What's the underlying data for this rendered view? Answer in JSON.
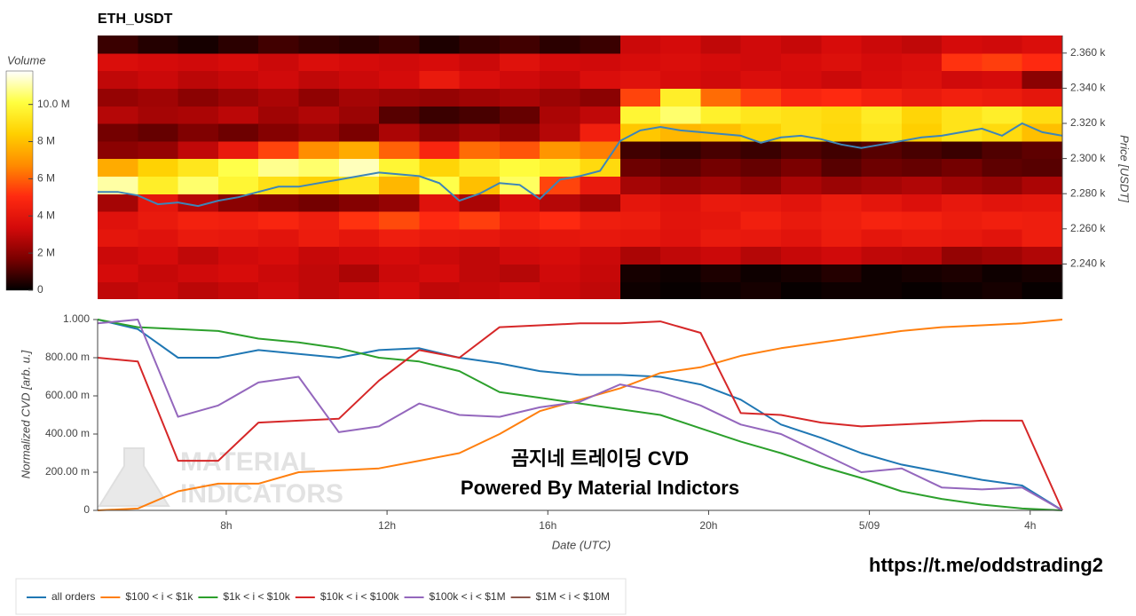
{
  "chart_data": [
    {
      "type": "heatmap",
      "title": "ETH_USDT",
      "ylabel": "Price [USDT]",
      "colorbar_title": "Volume",
      "xlim": [
        4.8,
        28.8
      ],
      "ylim": [
        2220,
        2370
      ],
      "yticks": [
        {
          "value": 2240,
          "label": "2.240 k"
        },
        {
          "value": 2260,
          "label": "2.260 k"
        },
        {
          "value": 2280,
          "label": "2.280 k"
        },
        {
          "value": 2300,
          "label": "2.300 k"
        },
        {
          "value": 2320,
          "label": "2.320 k"
        },
        {
          "value": 2340,
          "label": "2.340 k"
        },
        {
          "value": 2360,
          "label": "2.360 k"
        }
      ],
      "clim": [
        0,
        11800000.0
      ],
      "cticks": [
        0,
        {
          "value": 2000000.0,
          "label": "2 M"
        },
        {
          "value": 4000000.0,
          "label": "4 M"
        },
        {
          "value": 6000000.0,
          "label": "6 M"
        },
        {
          "value": 8000000.0,
          "label": "8 M"
        },
        {
          "value": 10000000.0,
          "label": "10.0 M"
        }
      ],
      "colormap": [
        "#000000",
        "#7a0000",
        "#d40a0a",
        "#ff2a10",
        "#ff8c00",
        "#ffd000",
        "#ffff40",
        "#ffffff"
      ],
      "x_bins": [
        4.8,
        5.8,
        6.8,
        7.8,
        8.8,
        9.8,
        10.8,
        11.8,
        12.8,
        13.8,
        14.8,
        15.8,
        16.8,
        17.8,
        18.8,
        19.8,
        20.8,
        21.8,
        22.8,
        23.8,
        24.8,
        25.8,
        26.8,
        27.8,
        28.8
      ],
      "y_bins": [
        2220,
        2230,
        2240,
        2250,
        2260,
        2270,
        2280,
        2290,
        2300,
        2310,
        2320,
        2330,
        2340,
        2350,
        2360,
        2370
      ],
      "z": [
        [
          3000000.0,
          3200000.0,
          2900000.0,
          3100000.0,
          3300000.0,
          3000000.0,
          3200000.0,
          3400000.0,
          3000000.0,
          3100000.0,
          3300000.0,
          3200000.0,
          3000000.0,
          200000.0,
          100000.0,
          200000.0,
          300000.0,
          100000.0,
          200000.0,
          200000.0,
          100000.0,
          200000.0,
          300000.0,
          100000.0
        ],
        [
          3400000.0,
          3100000.0,
          3300000.0,
          3500000.0,
          3200000.0,
          3000000.0,
          2600000.0,
          3200000.0,
          3400000.0,
          3000000.0,
          2800000.0,
          3300000.0,
          3100000.0,
          300000.0,
          200000.0,
          400000.0,
          200000.0,
          300000.0,
          500000.0,
          200000.0,
          300000.0,
          400000.0,
          200000.0,
          300000.0
        ],
        [
          3200000.0,
          3400000.0,
          3000000.0,
          3300000.0,
          3500000.0,
          3100000.0,
          3300000.0,
          3400000.0,
          3200000.0,
          3000000.0,
          3300000.0,
          3500000.0,
          3200000.0,
          2600000.0,
          3000000.0,
          3200000.0,
          2800000.0,
          3100000.0,
          3300000.0,
          3000000.0,
          2900000.0,
          2200000.0,
          2400000.0,
          2700000.0
        ],
        [
          4000000.0,
          3800000.0,
          4200000.0,
          4100000.0,
          3900000.0,
          4300000.0,
          4000000.0,
          4400000.0,
          4200000.0,
          4100000.0,
          3900000.0,
          4000000.0,
          4100000.0,
          4000000.0,
          3800000.0,
          4200000.0,
          4100000.0,
          3900000.0,
          4300000.0,
          4000000.0,
          4200000.0,
          4100000.0,
          3900000.0,
          4400000.0
        ],
        [
          3800000.0,
          4200000.0,
          4600000.0,
          4500000.0,
          4800000.0,
          4400000.0,
          5200000.0,
          5600000.0,
          5000000.0,
          5400000.0,
          4600000.0,
          5000000.0,
          4400000.0,
          4300000.0,
          3900000.0,
          4000000.0,
          4500000.0,
          4200000.0,
          4400000.0,
          4700000.0,
          4600000.0,
          4300000.0,
          4500000.0,
          4400000.0
        ],
        [
          2500000.0,
          4000000.0,
          2800000.0,
          2000000.0,
          1800000.0,
          1600000.0,
          1900000.0,
          2200000.0,
          3800000.0,
          2600000.0,
          3500000.0,
          2800000.0,
          2400000.0,
          4000000.0,
          3800000.0,
          4200000.0,
          4100000.0,
          3900000.0,
          4300000.0,
          4000000.0,
          3700000.0,
          4100000.0,
          3900000.0,
          4000000.0
        ],
        [
          11000000.0,
          9500000.0,
          10500000.0,
          9800000.0,
          9000000.0,
          8500000.0,
          9200000.0,
          7800000.0,
          10200000.0,
          8000000.0,
          10400000.0,
          5500000.0,
          4200000.0,
          2500000.0,
          2200000.0,
          2400000.0,
          2100000.0,
          2600000.0,
          2300000.0,
          2500000.0,
          2700000.0,
          2400000.0,
          2200000.0,
          2600000.0
        ],
        [
          7500000.0,
          8500000.0,
          9200000.0,
          10200000.0,
          10800000.0,
          10500000.0,
          11200000.0,
          9800000.0,
          8600000.0,
          9400000.0,
          10000000.0,
          9600000.0,
          8800000.0,
          1500000.0,
          1300000.0,
          1600000.0,
          1400000.0,
          1700000.0,
          1200000.0,
          1500000.0,
          1400000.0,
          1600000.0,
          1300000.0,
          1200000.0
        ],
        [
          2000000.0,
          2200000.0,
          3000000.0,
          4200000.0,
          5500000.0,
          6800000.0,
          7500000.0,
          6000000.0,
          4800000.0,
          6200000.0,
          5800000.0,
          7000000.0,
          6500000.0,
          900000.0,
          700000.0,
          1000000.0,
          800000.0,
          1100000.0,
          900000.0,
          1200000.0,
          1000000.0,
          800000.0,
          1100000.0,
          1300000.0
        ],
        [
          1600000.0,
          1400000.0,
          1800000.0,
          1500000.0,
          1900000.0,
          2200000.0,
          1700000.0,
          2600000.0,
          2000000.0,
          2400000.0,
          2100000.0,
          2800000.0,
          4500000.0,
          8200000.0,
          7800000.0,
          8000000.0,
          8500000.0,
          9000000.0,
          8700000.0,
          9200000.0,
          8400000.0,
          9100000.0,
          8800000.0,
          8000000.0
        ],
        [
          2800000.0,
          2500000.0,
          2600000.0,
          2900000.0,
          2400000.0,
          2700000.0,
          2300000.0,
          1200000.0,
          800000.0,
          1000000.0,
          1400000.0,
          2600000.0,
          3000000.0,
          9800000.0,
          10500000.0,
          9600000.0,
          9200000.0,
          9000000.0,
          8800000.0,
          9400000.0,
          8600000.0,
          9100000.0,
          9500000.0,
          8900000.0
        ],
        [
          2200000.0,
          2400000.0,
          2000000.0,
          2300000.0,
          2600000.0,
          2100000.0,
          2500000.0,
          2300000.0,
          2200000.0,
          2400000.0,
          2600000.0,
          2300000.0,
          2000000.0,
          5500000.0,
          9500000.0,
          6200000.0,
          5400000.0,
          4800000.0,
          5000000.0,
          4600000.0,
          4200000.0,
          4500000.0,
          4300000.0,
          4000000.0
        ],
        [
          3000000.0,
          3200000.0,
          2900000.0,
          3100000.0,
          3300000.0,
          3000000.0,
          3200000.0,
          3400000.0,
          4200000.0,
          3600000.0,
          3300000.0,
          3100000.0,
          3600000.0,
          3800000.0,
          3500000.0,
          3300000.0,
          3600000.0,
          3400000.0,
          3200000.0,
          3500000.0,
          3700000.0,
          3300000.0,
          3400000.0,
          2000000.0
        ],
        [
          3600000.0,
          3400000.0,
          3300000.0,
          3500000.0,
          3200000.0,
          3600000.0,
          3400000.0,
          3300000.0,
          3500000.0,
          3200000.0,
          3800000.0,
          3400000.0,
          3300000.0,
          3500000.0,
          3600000.0,
          3400000.0,
          3300000.0,
          3500000.0,
          3700000.0,
          3400000.0,
          3600000.0,
          5200000.0,
          5400000.0,
          5000000.0
        ],
        [
          800000.0,
          500000.0,
          300000.0,
          600000.0,
          900000.0,
          700000.0,
          600000.0,
          800000.0,
          400000.0,
          700000.0,
          900000.0,
          600000.0,
          800000.0,
          3200000.0,
          3400000.0,
          3000000.0,
          3300000.0,
          3100000.0,
          3500000.0,
          3200000.0,
          3000000.0,
          3400000.0,
          3300000.0,
          3600000.0
        ]
      ],
      "line": {
        "color": "#3d85b8",
        "x": [
          4.8,
          5.3,
          5.8,
          6.3,
          6.8,
          7.3,
          7.8,
          8.3,
          8.8,
          9.3,
          9.8,
          10.3,
          10.8,
          11.3,
          11.8,
          12.3,
          12.8,
          13.3,
          13.8,
          14.3,
          14.8,
          15.3,
          15.8,
          16.3,
          16.8,
          17.3,
          17.8,
          18.3,
          18.8,
          19.3,
          19.8,
          20.3,
          20.8,
          21.3,
          21.8,
          22.3,
          22.8,
          23.3,
          23.8,
          24.3,
          24.8,
          25.3,
          25.8,
          26.3,
          26.8,
          27.3,
          27.8,
          28.3,
          28.8
        ],
        "values": [
          2281,
          2281,
          2279,
          2274,
          2275,
          2273,
          2276,
          2278,
          2281,
          2284,
          2284,
          2286,
          2288,
          2290,
          2292,
          2291,
          2290,
          2286,
          2276,
          2280,
          2286,
          2285,
          2277,
          2288,
          2290,
          2293,
          2310,
          2316,
          2318,
          2316,
          2315,
          2314,
          2313,
          2309,
          2312,
          2313,
          2311,
          2308,
          2306,
          2308,
          2310,
          2312,
          2313,
          2315,
          2317,
          2313,
          2320,
          2315,
          2313
        ]
      }
    },
    {
      "type": "line",
      "xlabel": "Date (UTC)",
      "ylabel": "Normalized CVD [arb. u.]",
      "xlim": [
        4.8,
        28.8
      ],
      "ylim": [
        0,
        1
      ],
      "xticks": [
        {
          "value": 8,
          "label": "8h"
        },
        {
          "value": 12,
          "label": "12h"
        },
        {
          "value": 16,
          "label": "16h"
        },
        {
          "value": 20,
          "label": "20h"
        },
        {
          "value": 24,
          "label": "5/09"
        },
        {
          "value": 28,
          "label": "4h"
        }
      ],
      "yticks": [
        0,
        {
          "value": 0.2,
          "label": "200.00 m"
        },
        {
          "value": 0.4,
          "label": "400.00 m"
        },
        {
          "value": 0.6,
          "label": "600.00 m"
        },
        {
          "value": 0.8,
          "label": "800.00 m"
        },
        {
          "value": 1,
          "label": "1.000"
        }
      ],
      "x": [
        4.8,
        5.8,
        6.8,
        7.8,
        8.8,
        9.8,
        10.8,
        11.8,
        12.8,
        13.8,
        14.8,
        15.8,
        16.8,
        17.8,
        18.8,
        19.8,
        20.8,
        21.8,
        22.8,
        23.8,
        24.8,
        25.8,
        26.8,
        27.8,
        28.8
      ],
      "series": [
        {
          "name": "all orders",
          "color": "#1f77b4",
          "values": [
            1.0,
            0.95,
            0.8,
            0.8,
            0.84,
            0.82,
            0.8,
            0.84,
            0.85,
            0.8,
            0.77,
            0.73,
            0.71,
            0.71,
            0.7,
            0.66,
            0.58,
            0.45,
            0.38,
            0.3,
            0.24,
            0.2,
            0.16,
            0.13,
            0.0
          ]
        },
        {
          "name": "$100 < i < $1k",
          "color": "#ff7f0e",
          "values": [
            0.0,
            0.01,
            0.1,
            0.14,
            0.14,
            0.2,
            0.21,
            0.22,
            0.26,
            0.3,
            0.4,
            0.52,
            0.58,
            0.64,
            0.72,
            0.75,
            0.81,
            0.85,
            0.88,
            0.91,
            0.94,
            0.96,
            0.97,
            0.98,
            1.0
          ]
        },
        {
          "name": "$1k < i < $10k",
          "color": "#2ca02c",
          "values": [
            1.0,
            0.96,
            0.95,
            0.94,
            0.9,
            0.88,
            0.85,
            0.8,
            0.78,
            0.73,
            0.62,
            0.59,
            0.56,
            0.53,
            0.5,
            0.43,
            0.36,
            0.3,
            0.23,
            0.17,
            0.1,
            0.06,
            0.03,
            0.01,
            0.0
          ]
        },
        {
          "name": "$10k < i < $100k",
          "color": "#d62728",
          "values": [
            0.8,
            0.78,
            0.26,
            0.26,
            0.46,
            0.47,
            0.48,
            0.68,
            0.84,
            0.8,
            0.96,
            0.97,
            0.98,
            0.98,
            0.99,
            0.93,
            0.51,
            0.5,
            0.46,
            0.44,
            0.45,
            0.46,
            0.47,
            0.47,
            0.0
          ]
        },
        {
          "name": "$100k < i < $1M",
          "color": "#9467bd",
          "values": [
            0.98,
            1.0,
            0.49,
            0.55,
            0.67,
            0.7,
            0.41,
            0.44,
            0.56,
            0.5,
            0.49,
            0.54,
            0.57,
            0.66,
            0.62,
            0.55,
            0.45,
            0.4,
            0.3,
            0.2,
            0.22,
            0.12,
            0.11,
            0.12,
            0.0
          ]
        },
        {
          "name": "$1M < i < $10M",
          "color": "#8c564b",
          "values": [
            null,
            null,
            null,
            null,
            null,
            null,
            null,
            null,
            null,
            null,
            null,
            null,
            null,
            null,
            null,
            null,
            null,
            null,
            null,
            null,
            null,
            null,
            null,
            null,
            null
          ]
        }
      ],
      "watermark": [
        "MATERIAL",
        "INDICATORS"
      ],
      "annotations": [
        "곰지네 트레이딩 CVD",
        "Powered By Material Indictors",
        "https://t.me/oddstrading2"
      ]
    }
  ]
}
